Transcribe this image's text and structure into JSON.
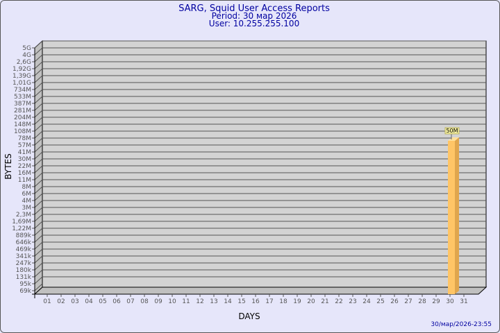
{
  "header": {
    "title": "SARG, Squid User Access Reports",
    "period": "Period: 30 мар 2026",
    "user": "User: 10.255.255.100"
  },
  "footer": {
    "timestamp": "30/мар/2026-23:55"
  },
  "colors": {
    "background": "#e6e6fa",
    "plot": "#d3d3d3",
    "bar": "#ffc566",
    "bar_side": "#e0a64d",
    "title": "#0000a0"
  },
  "chart_data": {
    "type": "bar",
    "xlabel": "DAYS",
    "ylabel": "BYTES",
    "y_scale": "log",
    "grid": true,
    "y_ticks": [
      "69k",
      "95k",
      "131k",
      "180k",
      "247k",
      "341k",
      "469k",
      "646k",
      "889k",
      "1,22M",
      "1,69M",
      "2,3M",
      "3M",
      "4M",
      "6M",
      "8M",
      "11M",
      "16M",
      "22M",
      "30M",
      "41M",
      "57M",
      "78M",
      "108M",
      "148M",
      "204M",
      "281M",
      "387M",
      "533M",
      "734M",
      "1,01G",
      "1,39G",
      "1,92G",
      "2,6G",
      "4G",
      "5G"
    ],
    "categories": [
      "01",
      "02",
      "03",
      "04",
      "05",
      "06",
      "07",
      "08",
      "09",
      "10",
      "11",
      "12",
      "13",
      "14",
      "15",
      "16",
      "17",
      "18",
      "19",
      "20",
      "21",
      "22",
      "23",
      "24",
      "25",
      "26",
      "27",
      "28",
      "29",
      "30",
      "31"
    ],
    "bars": [
      {
        "day": "30",
        "label": "50M",
        "tick_position": 21.6
      }
    ]
  }
}
